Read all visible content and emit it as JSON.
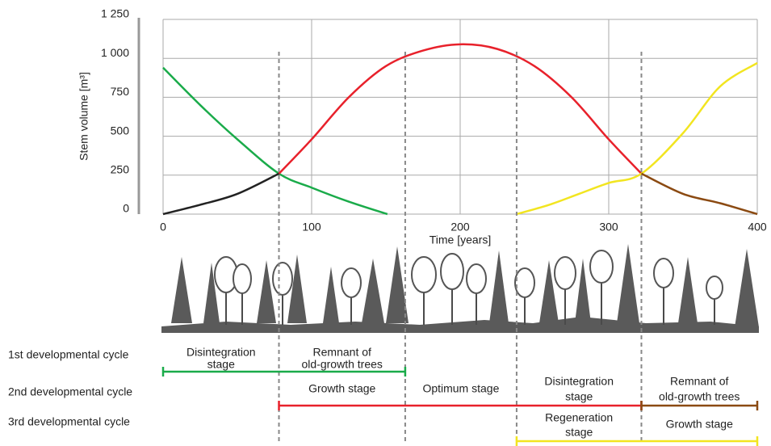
{
  "chart_data": {
    "type": "line",
    "ylabel": "Stem volume [m³]",
    "xlabel": "Time [years]",
    "xlim": [
      0,
      400
    ],
    "xticks": [
      0,
      100,
      200,
      300,
      400
    ],
    "ylim": [
      0,
      1250
    ],
    "yticks": [
      0,
      250,
      500,
      750,
      {
        "value": 1000,
        "label": "1 000"
      },
      {
        "value": 1250,
        "label": "1 250"
      }
    ],
    "grid": true,
    "series": [
      {
        "color": "#1aab4a",
        "x": [
          0,
          25,
          50,
          78,
          100,
          125,
          151
        ],
        "values": [
          940,
          700,
          480,
          260,
          170,
          80,
          0
        ]
      },
      {
        "color": "#222222",
        "x": [
          0,
          25,
          50,
          78
        ],
        "values": [
          0,
          60,
          130,
          260
        ]
      },
      {
        "color": "#e8212b",
        "x": [
          78,
          100,
          125,
          150,
          175,
          200,
          225,
          250,
          275,
          300,
          322
        ],
        "values": [
          260,
          480,
          750,
          950,
          1050,
          1090,
          1060,
          950,
          750,
          480,
          260
        ]
      },
      {
        "color": "#f2e520",
        "x": [
          238,
          260,
          280,
          300,
          322,
          350,
          375,
          400
        ],
        "values": [
          0,
          60,
          130,
          200,
          260,
          520,
          820,
          970
        ]
      },
      {
        "color": "#8b4a12",
        "x": [
          322,
          350,
          375,
          400
        ],
        "values": [
          260,
          130,
          70,
          0
        ]
      }
    ],
    "boundaries": [
      78,
      163,
      238,
      322
    ],
    "cycles": [
      {
        "label": "1st developmental cycle",
        "segments": [
          {
            "from": 0,
            "to": 163,
            "color": "#1aab4a"
          }
        ],
        "stages": [
          {
            "lines": [
              "Disintegration",
              "stage"
            ],
            "from": 0,
            "to": 78
          },
          {
            "lines": [
              "Remnant of",
              "old-growth trees"
            ],
            "from": 78,
            "to": 163
          }
        ]
      },
      {
        "label": "2nd developmental cycle",
        "segments": [
          {
            "from": 78,
            "to": 322,
            "color": "#e8212b"
          },
          {
            "from": 322,
            "to": 400,
            "color": "#8b4a12"
          }
        ],
        "stages": [
          {
            "lines": [
              "Growth stage"
            ],
            "from": 78,
            "to": 163
          },
          {
            "lines": [
              "Optimum stage"
            ],
            "from": 163,
            "to": 238
          },
          {
            "lines": [
              "Disintegration",
              "stage"
            ],
            "from": 238,
            "to": 322
          },
          {
            "lines": [
              "Remnant of",
              "old-growth trees"
            ],
            "from": 322,
            "to": 400
          }
        ]
      },
      {
        "label": "3rd developmental cycle",
        "segments": [
          {
            "from": 238,
            "to": 400,
            "color": "#f2e520"
          }
        ],
        "stages": [
          {
            "lines": [
              "Regeneration",
              "stage"
            ],
            "from": 238,
            "to": 322
          },
          {
            "lines": [
              "Growth stage"
            ],
            "from": 322,
            "to": 400
          }
        ]
      }
    ]
  }
}
